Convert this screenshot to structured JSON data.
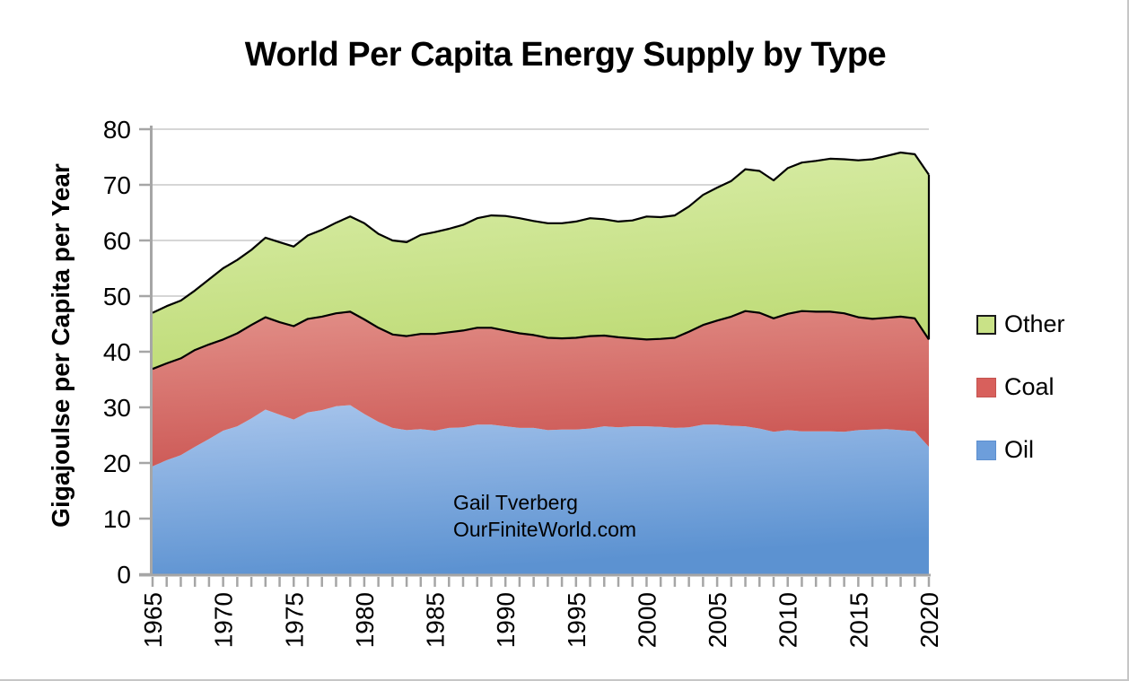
{
  "title": "World Per Capita Energy Supply by Type",
  "annotation": {
    "line1": "Gail Tverberg",
    "line2": "OurFiniteWorld.com"
  },
  "colors": {
    "axis": "#A6A6A6",
    "gridline": "#C9C9C9",
    "text": "#000000",
    "background": "#FFFFFF"
  },
  "legend": {
    "position": "right",
    "items": [
      {
        "label": "Other",
        "fill": "#C9E287",
        "border": "#1a1a1a"
      },
      {
        "label": "Coal",
        "fill": "#D8605C",
        "border": "#c4534f"
      },
      {
        "label": "Oil",
        "fill": "#6D9EDB",
        "border": "#5d8fcf"
      }
    ]
  },
  "chart_data": {
    "type": "area",
    "stacked": true,
    "title": "World Per Capita Energy Supply by Type",
    "xlabel": "",
    "ylabel": "Gigajoulse per Capita per Year",
    "ylim": [
      0,
      80
    ],
    "yticks": [
      0,
      10,
      20,
      30,
      40,
      50,
      60,
      70,
      80
    ],
    "grid": true,
    "legend_position": "right",
    "x": [
      1965,
      1966,
      1967,
      1968,
      1969,
      1970,
      1971,
      1972,
      1973,
      1974,
      1975,
      1976,
      1977,
      1978,
      1979,
      1980,
      1981,
      1982,
      1983,
      1984,
      1985,
      1986,
      1987,
      1988,
      1989,
      1990,
      1991,
      1992,
      1993,
      1994,
      1995,
      1996,
      1997,
      1998,
      1999,
      2000,
      2001,
      2002,
      2003,
      2004,
      2005,
      2006,
      2007,
      2008,
      2009,
      2010,
      2011,
      2012,
      2013,
      2014,
      2015,
      2016,
      2017,
      2018,
      2019,
      2020
    ],
    "xticks_labeled": [
      1965,
      1970,
      1975,
      1980,
      1985,
      1990,
      1995,
      2000,
      2005,
      2010,
      2015,
      2020
    ],
    "series": [
      {
        "name": "Oil",
        "fill_top": "#A8C5EC",
        "fill_bottom": "#5C92D1",
        "line": null,
        "values": [
          19.4,
          20.5,
          21.4,
          22.9,
          24.3,
          25.8,
          26.6,
          28.0,
          29.6,
          28.7,
          27.8,
          29.1,
          29.5,
          30.2,
          30.4,
          28.8,
          27.4,
          26.3,
          25.9,
          26.1,
          25.8,
          26.3,
          26.4,
          26.9,
          26.9,
          26.6,
          26.3,
          26.3,
          25.9,
          26.0,
          26.0,
          26.2,
          26.6,
          26.4,
          26.6,
          26.6,
          26.5,
          26.3,
          26.4,
          26.9,
          26.9,
          26.7,
          26.6,
          26.2,
          25.6,
          25.9,
          25.7,
          25.7,
          25.7,
          25.6,
          25.9,
          26.0,
          26.1,
          25.9,
          25.7,
          22.9
        ]
      },
      {
        "name": "Coal",
        "fill_top": "#E29089",
        "fill_bottom": "#CC5754",
        "line": "#000000",
        "values": [
          17.5,
          17.4,
          17.4,
          17.4,
          17.0,
          16.4,
          16.7,
          16.8,
          16.6,
          16.6,
          16.8,
          16.8,
          16.8,
          16.7,
          16.8,
          17.0,
          16.9,
          16.8,
          16.9,
          17.1,
          17.4,
          17.2,
          17.4,
          17.4,
          17.4,
          17.2,
          17.0,
          16.7,
          16.6,
          16.4,
          16.5,
          16.6,
          16.3,
          16.2,
          15.8,
          15.6,
          15.8,
          16.2,
          17.2,
          17.9,
          18.7,
          19.6,
          20.7,
          20.8,
          20.4,
          20.9,
          21.6,
          21.5,
          21.5,
          21.3,
          20.3,
          19.9,
          20.0,
          20.4,
          20.3,
          19.3
        ]
      },
      {
        "name": "Other",
        "fill_top": "#DCEFAE",
        "fill_bottom": "#BEDB76",
        "line": "#000000",
        "values": [
          10.1,
          10.3,
          10.4,
          10.7,
          11.7,
          12.8,
          13.2,
          13.5,
          14.3,
          14.4,
          14.3,
          15.0,
          15.6,
          16.3,
          17.1,
          17.3,
          16.9,
          16.9,
          16.9,
          17.8,
          18.3,
          18.6,
          19.0,
          19.7,
          20.2,
          20.6,
          20.7,
          20.5,
          20.6,
          20.7,
          20.9,
          21.2,
          20.9,
          20.8,
          21.2,
          22.1,
          21.9,
          22.0,
          22.5,
          23.4,
          23.9,
          24.4,
          25.5,
          25.5,
          24.8,
          26.2,
          26.7,
          27.1,
          27.5,
          27.7,
          28.2,
          28.7,
          29.1,
          29.5,
          29.5,
          29.6
        ]
      }
    ]
  }
}
